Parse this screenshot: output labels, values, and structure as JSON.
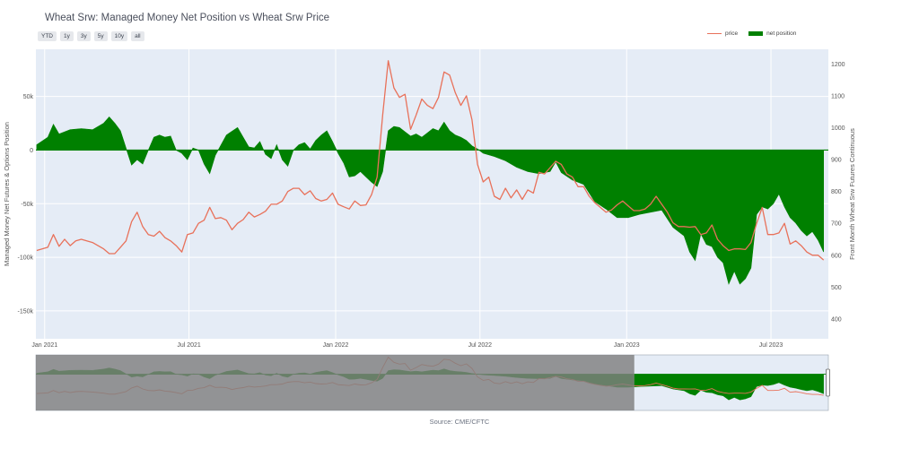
{
  "title": "Wheat Srw: Managed Money Net Position vs Wheat Srw Price",
  "range_buttons": [
    "YTD",
    "1y",
    "3y",
    "5y",
    "10y",
    "all"
  ],
  "legend": {
    "price": "price",
    "net_position": "net position"
  },
  "source": "Source: CME/CFTC",
  "colors": {
    "price": "#e8715a",
    "net_position": "#008000",
    "plot_bg": "#e5ecf6",
    "range_mask": "#7f7f7f",
    "range_net": "#005000"
  },
  "chart_data": {
    "type": "area",
    "title": "Wheat Srw: Managed Money Net Position vs Wheat Srw Price",
    "y_left_label": "Managed Money Net Futures & Options Position",
    "y_right_label": "Front Month Wheat Srw Futures Continuous",
    "x_ticks": [
      "Jan 2021",
      "Jul 2021",
      "Jan 2022",
      "Jul 2022",
      "Jan 2023",
      "Jul 2023"
    ],
    "y_left_ticks": [
      "50k",
      "0",
      "-50k",
      "-100k",
      "-150k"
    ],
    "y_left_tick_values": [
      50000,
      0,
      -50000,
      -100000,
      -150000
    ],
    "y_left_range": [
      -176000,
      94000
    ],
    "y_right_ticks": [
      "1200",
      "1100",
      "1000",
      "900",
      "800",
      "700",
      "600",
      "500",
      "400"
    ],
    "y_right_tick_values": [
      1200,
      1100,
      1000,
      900,
      800,
      700,
      600,
      500,
      400
    ],
    "y_right_range": [
      338,
      1246
    ],
    "x_range": [
      "2020-12-21",
      "2023-09-11"
    ],
    "series": [
      {
        "name": "net position",
        "kind": "area",
        "axis": "left",
        "points": [
          [
            "2020-12-22",
            5000
          ],
          [
            "2021-01-05",
            12000
          ],
          [
            "2021-01-12",
            24000
          ],
          [
            "2021-01-19",
            15000
          ],
          [
            "2021-02-02",
            19000
          ],
          [
            "2021-02-16",
            20000
          ],
          [
            "2021-03-02",
            19000
          ],
          [
            "2021-03-16",
            25000
          ],
          [
            "2021-03-23",
            31000
          ],
          [
            "2021-03-30",
            25000
          ],
          [
            "2021-04-06",
            18000
          ],
          [
            "2021-04-13",
            2000
          ],
          [
            "2021-04-20",
            -14000
          ],
          [
            "2021-04-27",
            -9000
          ],
          [
            "2021-05-04",
            -13000
          ],
          [
            "2021-05-11",
            0
          ],
          [
            "2021-05-18",
            12000
          ],
          [
            "2021-05-25",
            14000
          ],
          [
            "2021-06-01",
            12000
          ],
          [
            "2021-06-08",
            13000
          ],
          [
            "2021-06-15",
            0
          ],
          [
            "2021-06-22",
            -3000
          ],
          [
            "2021-06-29",
            -9000
          ],
          [
            "2021-07-06",
            2000
          ],
          [
            "2021-07-13",
            0
          ],
          [
            "2021-07-20",
            -13000
          ],
          [
            "2021-07-27",
            -22000
          ],
          [
            "2021-08-03",
            -5000
          ],
          [
            "2021-08-17",
            14000
          ],
          [
            "2021-08-31",
            21000
          ],
          [
            "2021-09-14",
            3000
          ],
          [
            "2021-09-21",
            2000
          ],
          [
            "2021-09-28",
            8000
          ],
          [
            "2021-10-05",
            -4000
          ],
          [
            "2021-10-12",
            -8000
          ],
          [
            "2021-10-19",
            5000
          ],
          [
            "2021-10-26",
            -9000
          ],
          [
            "2021-11-02",
            -15000
          ],
          [
            "2021-11-09",
            0
          ],
          [
            "2021-11-16",
            5000
          ],
          [
            "2021-11-23",
            7000
          ],
          [
            "2021-11-30",
            1000
          ],
          [
            "2021-12-07",
            9000
          ],
          [
            "2021-12-14",
            14000
          ],
          [
            "2021-12-21",
            18000
          ],
          [
            "2021-12-28",
            8000
          ],
          [
            "2022-01-04",
            -3000
          ],
          [
            "2022-01-11",
            -12000
          ],
          [
            "2022-01-18",
            -25000
          ],
          [
            "2022-01-25",
            -24000
          ],
          [
            "2022-02-01",
            -20000
          ],
          [
            "2022-02-08",
            -25000
          ],
          [
            "2022-02-15",
            -30000
          ],
          [
            "2022-02-22",
            -34000
          ],
          [
            "2022-03-01",
            -20000
          ],
          [
            "2022-03-08",
            18000
          ],
          [
            "2022-03-15",
            22000
          ],
          [
            "2022-03-22",
            21000
          ],
          [
            "2022-03-29",
            17000
          ],
          [
            "2022-04-05",
            13000
          ],
          [
            "2022-04-12",
            15000
          ],
          [
            "2022-04-19",
            12000
          ],
          [
            "2022-04-26",
            16000
          ],
          [
            "2022-05-03",
            20000
          ],
          [
            "2022-05-10",
            18000
          ],
          [
            "2022-05-17",
            26000
          ],
          [
            "2022-05-24",
            18000
          ],
          [
            "2022-05-31",
            14000
          ],
          [
            "2022-06-07",
            12000
          ],
          [
            "2022-06-14",
            9000
          ],
          [
            "2022-06-21",
            4000
          ],
          [
            "2022-06-28",
            1000
          ],
          [
            "2022-07-05",
            -3000
          ],
          [
            "2022-07-19",
            -6000
          ],
          [
            "2022-08-02",
            -10000
          ],
          [
            "2022-08-16",
            -16000
          ],
          [
            "2022-08-30",
            -20000
          ],
          [
            "2022-09-13",
            -22000
          ],
          [
            "2022-09-27",
            -20000
          ],
          [
            "2022-10-04",
            -11000
          ],
          [
            "2022-10-11",
            -21000
          ],
          [
            "2022-10-25",
            -28000
          ],
          [
            "2022-11-08",
            -32000
          ],
          [
            "2022-11-22",
            -48000
          ],
          [
            "2022-12-06",
            -55000
          ],
          [
            "2022-12-20",
            -63000
          ],
          [
            "2023-01-03",
            -63000
          ],
          [
            "2023-01-17",
            -60000
          ],
          [
            "2023-01-31",
            -58000
          ],
          [
            "2023-02-14",
            -56000
          ],
          [
            "2023-02-28",
            -72000
          ],
          [
            "2023-03-14",
            -80000
          ],
          [
            "2023-03-21",
            -95000
          ],
          [
            "2023-03-28",
            -103000
          ],
          [
            "2023-04-04",
            -78000
          ],
          [
            "2023-04-11",
            -88000
          ],
          [
            "2023-04-18",
            -90000
          ],
          [
            "2023-04-25",
            -100000
          ],
          [
            "2023-05-02",
            -105000
          ],
          [
            "2023-05-09",
            -125000
          ],
          [
            "2023-05-16",
            -113000
          ],
          [
            "2023-05-23",
            -125000
          ],
          [
            "2023-05-30",
            -120000
          ],
          [
            "2023-06-06",
            -110000
          ],
          [
            "2023-06-13",
            -60000
          ],
          [
            "2023-06-20",
            -53000
          ],
          [
            "2023-06-27",
            -55000
          ],
          [
            "2023-07-04",
            -50000
          ],
          [
            "2023-07-11",
            -41000
          ],
          [
            "2023-07-18",
            -53000
          ],
          [
            "2023-07-25",
            -63000
          ],
          [
            "2023-08-01",
            -68000
          ],
          [
            "2023-08-08",
            -75000
          ],
          [
            "2023-08-15",
            -80000
          ],
          [
            "2023-08-22",
            -76000
          ],
          [
            "2023-08-29",
            -84000
          ],
          [
            "2023-09-05",
            -95000
          ]
        ]
      },
      {
        "name": "price",
        "kind": "line",
        "axis": "right",
        "points": [
          [
            "2020-12-22",
            615
          ],
          [
            "2021-01-05",
            625
          ],
          [
            "2021-01-12",
            665
          ],
          [
            "2021-01-19",
            628
          ],
          [
            "2021-01-26",
            650
          ],
          [
            "2021-02-02",
            630
          ],
          [
            "2021-02-09",
            645
          ],
          [
            "2021-02-16",
            650
          ],
          [
            "2021-03-02",
            640
          ],
          [
            "2021-03-16",
            620
          ],
          [
            "2021-03-23",
            605
          ],
          [
            "2021-03-30",
            605
          ],
          [
            "2021-04-06",
            625
          ],
          [
            "2021-04-13",
            645
          ],
          [
            "2021-04-20",
            705
          ],
          [
            "2021-04-27",
            735
          ],
          [
            "2021-05-04",
            690
          ],
          [
            "2021-05-11",
            665
          ],
          [
            "2021-05-18",
            660
          ],
          [
            "2021-05-25",
            675
          ],
          [
            "2021-06-01",
            655
          ],
          [
            "2021-06-08",
            645
          ],
          [
            "2021-06-15",
            630
          ],
          [
            "2021-06-22",
            610
          ],
          [
            "2021-06-29",
            665
          ],
          [
            "2021-07-06",
            670
          ],
          [
            "2021-07-13",
            700
          ],
          [
            "2021-07-20",
            710
          ],
          [
            "2021-07-27",
            750
          ],
          [
            "2021-08-03",
            715
          ],
          [
            "2021-08-10",
            718
          ],
          [
            "2021-08-17",
            710
          ],
          [
            "2021-08-24",
            680
          ],
          [
            "2021-08-31",
            700
          ],
          [
            "2021-09-07",
            712
          ],
          [
            "2021-09-14",
            735
          ],
          [
            "2021-09-21",
            720
          ],
          [
            "2021-09-28",
            728
          ],
          [
            "2021-10-05",
            738
          ],
          [
            "2021-10-12",
            760
          ],
          [
            "2021-10-19",
            760
          ],
          [
            "2021-10-26",
            770
          ],
          [
            "2021-11-02",
            800
          ],
          [
            "2021-11-09",
            810
          ],
          [
            "2021-11-16",
            810
          ],
          [
            "2021-11-23",
            790
          ],
          [
            "2021-11-30",
            802
          ],
          [
            "2021-12-07",
            778
          ],
          [
            "2021-12-14",
            770
          ],
          [
            "2021-12-21",
            775
          ],
          [
            "2021-12-28",
            795
          ],
          [
            "2022-01-04",
            760
          ],
          [
            "2022-01-11",
            752
          ],
          [
            "2022-01-18",
            745
          ],
          [
            "2022-01-25",
            770
          ],
          [
            "2022-02-01",
            756
          ],
          [
            "2022-02-08",
            758
          ],
          [
            "2022-02-15",
            790
          ],
          [
            "2022-02-22",
            845
          ],
          [
            "2022-03-01",
            1040
          ],
          [
            "2022-03-08",
            1210
          ],
          [
            "2022-03-15",
            1125
          ],
          [
            "2022-03-22",
            1095
          ],
          [
            "2022-03-29",
            1105
          ],
          [
            "2022-04-05",
            995
          ],
          [
            "2022-04-12",
            1040
          ],
          [
            "2022-04-19",
            1090
          ],
          [
            "2022-04-26",
            1070
          ],
          [
            "2022-05-03",
            1060
          ],
          [
            "2022-05-10",
            1095
          ],
          [
            "2022-05-17",
            1175
          ],
          [
            "2022-05-24",
            1165
          ],
          [
            "2022-05-31",
            1110
          ],
          [
            "2022-06-07",
            1070
          ],
          [
            "2022-06-14",
            1100
          ],
          [
            "2022-06-21",
            1025
          ],
          [
            "2022-06-28",
            885
          ],
          [
            "2022-07-05",
            830
          ],
          [
            "2022-07-12",
            845
          ],
          [
            "2022-07-19",
            785
          ],
          [
            "2022-07-26",
            775
          ],
          [
            "2022-08-02",
            810
          ],
          [
            "2022-08-09",
            780
          ],
          [
            "2022-08-16",
            805
          ],
          [
            "2022-08-23",
            775
          ],
          [
            "2022-08-30",
            805
          ],
          [
            "2022-09-06",
            795
          ],
          [
            "2022-09-13",
            860
          ],
          [
            "2022-09-20",
            855
          ],
          [
            "2022-09-27",
            875
          ],
          [
            "2022-10-04",
            895
          ],
          [
            "2022-10-11",
            885
          ],
          [
            "2022-10-18",
            855
          ],
          [
            "2022-10-25",
            845
          ],
          [
            "2022-11-01",
            815
          ],
          [
            "2022-11-08",
            815
          ],
          [
            "2022-11-15",
            785
          ],
          [
            "2022-11-22",
            765
          ],
          [
            "2022-11-29",
            750
          ],
          [
            "2022-12-06",
            735
          ],
          [
            "2022-12-13",
            742
          ],
          [
            "2022-12-20",
            758
          ],
          [
            "2022-12-27",
            770
          ],
          [
            "2023-01-03",
            755
          ],
          [
            "2023-01-10",
            740
          ],
          [
            "2023-01-17",
            740
          ],
          [
            "2023-01-24",
            745
          ],
          [
            "2023-01-31",
            760
          ],
          [
            "2023-02-07",
            785
          ],
          [
            "2023-02-14",
            760
          ],
          [
            "2023-02-21",
            735
          ],
          [
            "2023-02-28",
            702
          ],
          [
            "2023-03-07",
            690
          ],
          [
            "2023-03-14",
            690
          ],
          [
            "2023-03-21",
            688
          ],
          [
            "2023-03-28",
            690
          ],
          [
            "2023-04-04",
            665
          ],
          [
            "2023-04-11",
            670
          ],
          [
            "2023-04-18",
            695
          ],
          [
            "2023-04-25",
            650
          ],
          [
            "2023-05-02",
            630
          ],
          [
            "2023-05-09",
            615
          ],
          [
            "2023-05-16",
            620
          ],
          [
            "2023-05-23",
            620
          ],
          [
            "2023-05-30",
            618
          ],
          [
            "2023-06-06",
            640
          ],
          [
            "2023-06-13",
            700
          ],
          [
            "2023-06-20",
            750
          ],
          [
            "2023-06-27",
            665
          ],
          [
            "2023-07-04",
            665
          ],
          [
            "2023-07-11",
            670
          ],
          [
            "2023-07-18",
            700
          ],
          [
            "2023-07-25",
            635
          ],
          [
            "2023-08-01",
            645
          ],
          [
            "2023-08-08",
            630
          ],
          [
            "2023-08-15",
            610
          ],
          [
            "2023-08-22",
            600
          ],
          [
            "2023-08-29",
            600
          ],
          [
            "2023-09-05",
            585
          ]
        ]
      }
    ],
    "range_selector_window": [
      "2023-01-10",
      "2023-09-11"
    ]
  }
}
